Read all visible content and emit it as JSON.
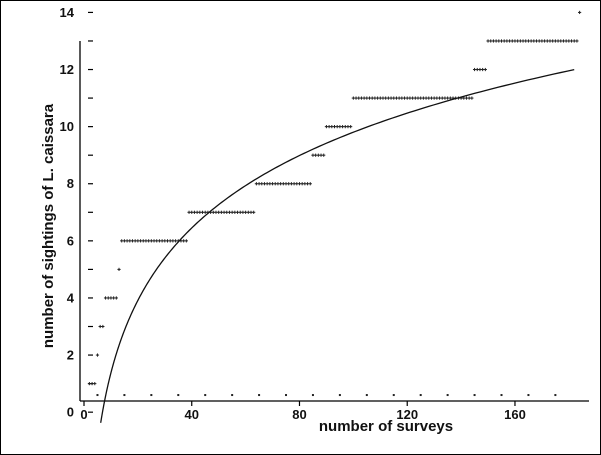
{
  "chart_data": {
    "type": "scatter",
    "xlabel": "number of surveys",
    "ylabel": "number of sightings of L. caissara",
    "xlim": [
      0,
      186
    ],
    "ylim": [
      -1.5,
      14.4
    ],
    "x_ticks": [
      "0",
      "40",
      "80",
      "120",
      "160"
    ],
    "x_tick_values": [
      0,
      40,
      80,
      120,
      160
    ],
    "y_ticks": [
      "0",
      "2",
      "4",
      "6",
      "8",
      "10",
      "12",
      "14"
    ],
    "y_tick_values": [
      0,
      2,
      4,
      6,
      8,
      10,
      12,
      14
    ],
    "y_minor_ticks": [
      1,
      3,
      5,
      7,
      9,
      11,
      13
    ],
    "grid": false,
    "legend": "none",
    "marker_color": "#222222",
    "series": [
      {
        "type": "step-points",
        "segments": [
          {
            "y": 1,
            "x_start": 2,
            "x_end": 4
          },
          {
            "y": 2,
            "x_start": 5,
            "x_end": 5
          },
          {
            "y": 3,
            "x_start": 6,
            "x_end": 7
          },
          {
            "y": 4,
            "x_start": 8,
            "x_end": 12
          },
          {
            "y": 5,
            "x_start": 13,
            "x_end": 13
          },
          {
            "y": 6,
            "x_start": 14,
            "x_end": 38
          },
          {
            "y": 7,
            "x_start": 39,
            "x_end": 63
          },
          {
            "y": 8,
            "x_start": 64,
            "x_end": 84
          },
          {
            "y": 9,
            "x_start": 85,
            "x_end": 89
          },
          {
            "y": 10,
            "x_start": 90,
            "x_end": 99
          },
          {
            "y": 11,
            "x_start": 100,
            "x_end": 144
          },
          {
            "y": 12,
            "x_start": 145,
            "x_end": 149
          },
          {
            "y": 13,
            "x_start": 150,
            "x_end": 183
          },
          {
            "y": 14,
            "x_start": 184,
            "x_end": 184
          }
        ]
      },
      {
        "type": "fitted-curve",
        "function": "y = a * ln(x) + b",
        "a": 3.66,
        "b": -7.05,
        "x_range": [
          6.2,
          182
        ]
      },
      {
        "type": "baseline-dots",
        "y": 0.6,
        "x": [
          5,
          15,
          25,
          35,
          45,
          55,
          65,
          75,
          85,
          95,
          105,
          115,
          125,
          135,
          145,
          155,
          165,
          175
        ]
      }
    ]
  }
}
